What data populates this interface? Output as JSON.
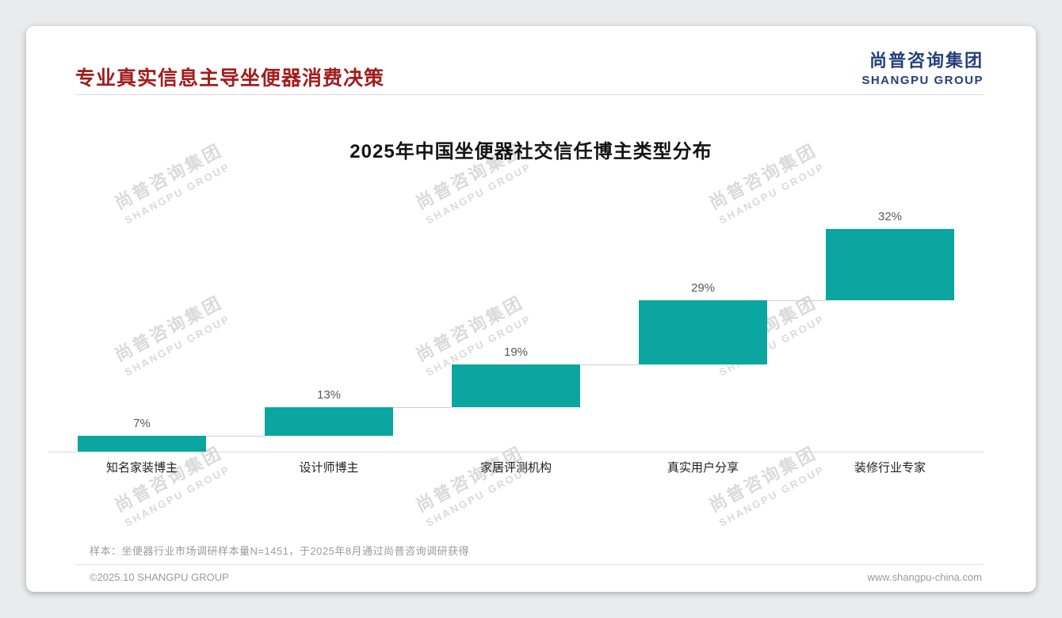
{
  "page": {
    "header": {
      "title": "专业真实信息主导坐便器消费决策",
      "title_color": "#a31d1d"
    },
    "logo": {
      "cn": "尚普咨询集团",
      "en": "SHANGPU GROUP",
      "color": "#24407c"
    },
    "watermark": {
      "cn": "尚普咨询集团",
      "en": "SHANGPU GROUP"
    },
    "footnote": "样本：坐便器行业市场调研样本量N=1451，于2025年8月通过尚普咨询调研获得",
    "footer": {
      "left": "©2025.10 SHANGPU GROUP",
      "right": "www.shangpu-china.com"
    }
  },
  "chart_data": {
    "type": "bar",
    "subtype": "cumulative-staircase",
    "title": "2025年中国坐便器社交信任博主类型分布",
    "categories": [
      "知名家装博主",
      "设计师博主",
      "家居评测机构",
      "真实用户分享",
      "装修行业专家"
    ],
    "values": [
      7,
      13,
      19,
      29,
      32
    ],
    "value_labels": [
      "7%",
      "13%",
      "19%",
      "29%",
      "32%"
    ],
    "bar_color": "#0aa69f",
    "axis_line_color": "#d9d9d9",
    "value_label_color": "#595959",
    "ylim": [
      0,
      100
    ],
    "grid": false,
    "legend": "none"
  }
}
